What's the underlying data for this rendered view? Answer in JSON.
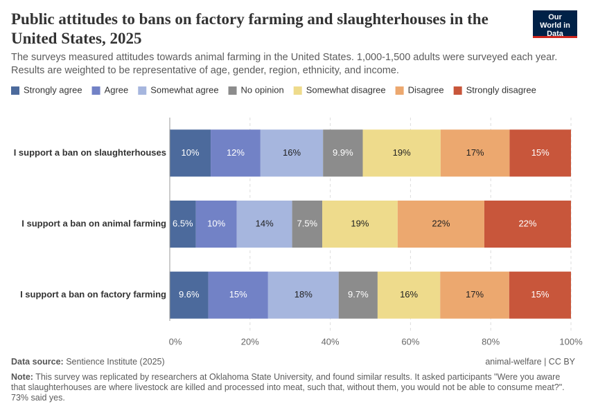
{
  "chart_data": {
    "type": "stacked-bar-horizontal",
    "title": "Public attitudes to bans on factory farming and slaughterhouses in the United States, 2025",
    "subtitle": "The surveys measured attitudes towards animal farming in the United States. 1,000-1,500 adults were surveyed each year. Results are weighted to be representative of age, gender, region, ethnicity, and income.",
    "categories": [
      "I support a ban on slaughterhouses",
      "I support a ban on animal farming",
      "I support a ban on factory farming"
    ],
    "series": [
      {
        "name": "Strongly agree",
        "color": "#4c6a9c",
        "values": [
          10.2,
          6.5,
          9.6
        ],
        "value_labels": [
          "10%",
          "6.5%",
          "9.6%"
        ]
      },
      {
        "name": "Agree",
        "color": "#7282c6",
        "values": [
          12.4,
          10.2,
          14.9
        ],
        "value_labels": [
          "12%",
          "10%",
          "15%"
        ]
      },
      {
        "name": "Somewhat agree",
        "color": "#a6b6de",
        "values": [
          15.6,
          13.8,
          17.6
        ],
        "value_labels": [
          "16%",
          "14%",
          "18%"
        ]
      },
      {
        "name": "No opinion",
        "color": "#8c8c8c",
        "values": [
          9.9,
          7.5,
          9.7
        ],
        "value_labels": [
          "9.9%",
          "7.5%",
          "9.7%"
        ]
      },
      {
        "name": "Somewhat disagree",
        "color": "#eedb8c",
        "values": [
          19.4,
          18.8,
          15.6
        ],
        "value_labels": [
          "19%",
          "19%",
          "16%"
        ]
      },
      {
        "name": "Disagree",
        "color": "#eca86f",
        "values": [
          17.2,
          21.6,
          17.2
        ],
        "value_labels": [
          "17%",
          "22%",
          "17%"
        ]
      },
      {
        "name": "Strongly disagree",
        "color": "#c8563b",
        "values": [
          15.3,
          21.6,
          15.4
        ],
        "value_labels": [
          "15%",
          "22%",
          "15%"
        ]
      }
    ],
    "xlim": [
      0,
      100
    ],
    "xticks": [
      {
        "value": 0,
        "label": "0%"
      },
      {
        "value": 20,
        "label": "20%"
      },
      {
        "value": 40,
        "label": "40%"
      },
      {
        "value": 60,
        "label": "60%"
      },
      {
        "value": 80,
        "label": "80%"
      },
      {
        "value": 100,
        "label": "100%"
      }
    ],
    "grid": true,
    "source_label": "Data source:",
    "source": "Sentience Institute (2025)",
    "license": "animal-welfare | CC BY",
    "note_label": "Note:",
    "note": "This survey was replicated by researchers at Oklahoma State University, and found similar results. It asked participants \"Were you aware that slaughterhouses are where livestock are killed and processed into meat, such that, without them, you would not be able to consume meat?\". 73% said yes.",
    "logo": "Our World in Data"
  }
}
